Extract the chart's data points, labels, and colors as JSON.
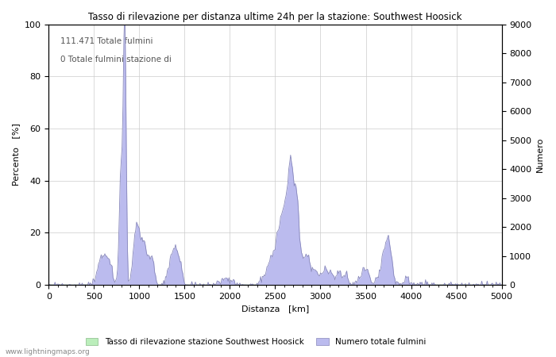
{
  "title": "Tasso di rilevazione per distanza ultime 24h per la stazione: Southwest Hoosick",
  "xlabel": "Distanza   [km]",
  "ylabel_left": "Percento   [%]",
  "ylabel_right": "Numero",
  "annotation_line1": "111.471 Totale fulmini",
  "annotation_line2": "0 Totale fulmini stazione di",
  "xlim": [
    0,
    5000
  ],
  "ylim_left": [
    0,
    100
  ],
  "ylim_right": [
    0,
    9000
  ],
  "xticks": [
    0,
    500,
    1000,
    1500,
    2000,
    2500,
    3000,
    3500,
    4000,
    4500,
    5000
  ],
  "yticks_left": [
    0,
    20,
    40,
    60,
    80,
    100
  ],
  "yticks_right": [
    0,
    1000,
    2000,
    3000,
    4000,
    5000,
    6000,
    7000,
    8000,
    9000
  ],
  "legend_label1": "Tasso di rilevazione stazione Southwest Hoosick",
  "legend_label2": "Numero totale fulmini",
  "color_fill_green": "#bbeebb",
  "color_fill_blue": "#bbbbee",
  "color_line_blue": "#8888bb",
  "color_line_green": "#88bb88",
  "watermark": "www.lightningmaps.org",
  "background_color": "#ffffff",
  "grid_color": "#cccccc"
}
